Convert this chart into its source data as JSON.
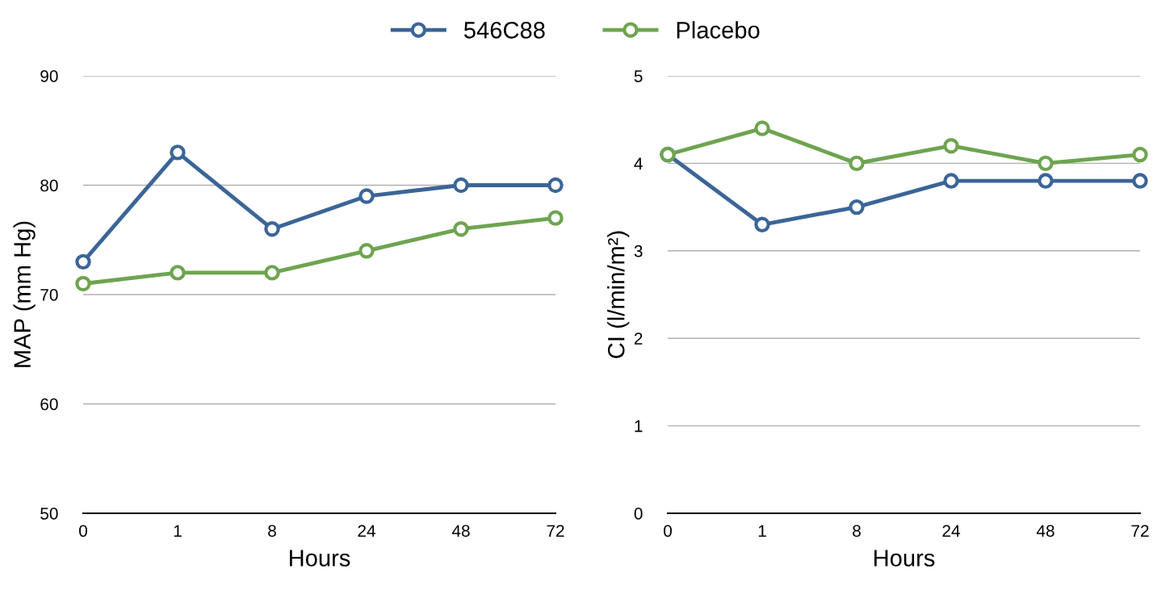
{
  "chart_data": [
    {
      "type": "line",
      "ylabel": "MAP (mm Hg)",
      "xlabel": "Hours",
      "categories": [
        "0",
        "1",
        "8",
        "24",
        "48",
        "72"
      ],
      "ylim": [
        50,
        90
      ],
      "yticks": [
        50,
        60,
        70,
        80,
        90
      ],
      "grid": "y",
      "legend": "top",
      "marker": "circle",
      "line_style": "solid",
      "series": [
        {
          "name": "546C88",
          "color": "#3b6598",
          "values": [
            73,
            83,
            76,
            79,
            80,
            80
          ]
        },
        {
          "name": "Placebo",
          "color": "#6ea450",
          "values": [
            71,
            72,
            72,
            74,
            76,
            77
          ]
        }
      ]
    },
    {
      "type": "line",
      "ylabel": "CI (l/min/m²)",
      "xlabel": "Hours",
      "categories": [
        "0",
        "1",
        "8",
        "24",
        "48",
        "72"
      ],
      "ylim": [
        0,
        5
      ],
      "yticks": [
        0,
        1,
        2,
        3,
        4,
        5
      ],
      "grid": "y",
      "marker": "circle",
      "line_style": "solid",
      "series": [
        {
          "color": "#3b6598",
          "values": [
            4.1,
            3.3,
            3.5,
            3.8,
            3.8,
            3.8
          ]
        },
        {
          "color": "#6ea450",
          "values": [
            4.1,
            4.4,
            4.0,
            4.2,
            4.0,
            4.1
          ]
        }
      ]
    }
  ]
}
